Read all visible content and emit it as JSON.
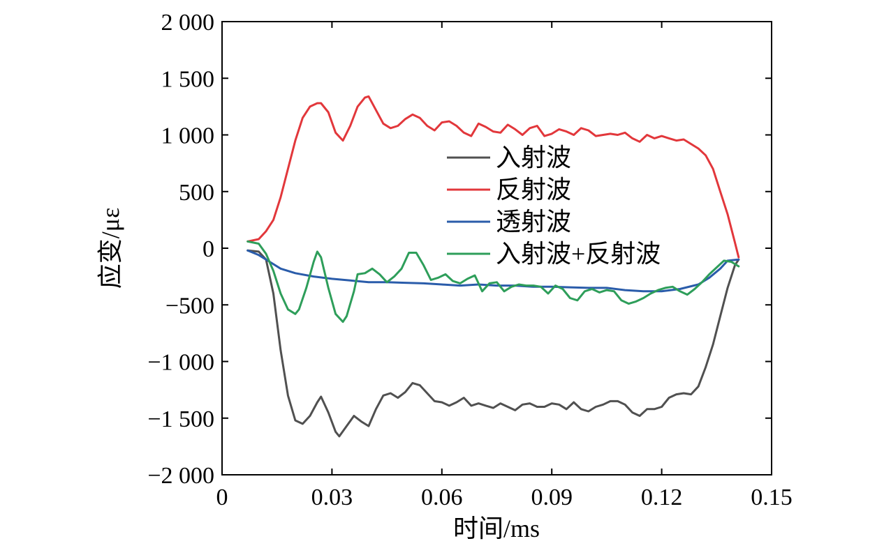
{
  "chart_data": {
    "type": "line",
    "title": "",
    "xlabel": "时间/ms",
    "ylabel": "应变/με",
    "xlim": [
      0,
      0.15
    ],
    "ylim": [
      -2000,
      2000
    ],
    "xticks": [
      0,
      0.03,
      0.06,
      0.09,
      0.12,
      0.15
    ],
    "xtick_labels": [
      "0",
      "0.03",
      "0.06",
      "0.09",
      "0.12",
      "0.15"
    ],
    "yticks": [
      2000,
      1500,
      1000,
      500,
      0,
      -500,
      -1000,
      -1500,
      -2000
    ],
    "ytick_labels": [
      "2 000",
      "1 500",
      "1 000",
      "500",
      "0",
      "−500",
      "−1 000",
      "−1 500",
      "−2 000"
    ],
    "grid": false,
    "legend_position": "center",
    "series": [
      {
        "name": "入射波",
        "color": "#505050",
        "x": [
          0.007,
          0.01,
          0.012,
          0.014,
          0.016,
          0.018,
          0.02,
          0.022,
          0.024,
          0.026,
          0.027,
          0.029,
          0.031,
          0.032,
          0.034,
          0.036,
          0.038,
          0.04,
          0.042,
          0.044,
          0.046,
          0.048,
          0.05,
          0.052,
          0.054,
          0.056,
          0.058,
          0.06,
          0.062,
          0.064,
          0.066,
          0.068,
          0.07,
          0.072,
          0.074,
          0.076,
          0.078,
          0.08,
          0.082,
          0.084,
          0.086,
          0.088,
          0.09,
          0.092,
          0.094,
          0.096,
          0.098,
          0.1,
          0.102,
          0.104,
          0.106,
          0.108,
          0.11,
          0.112,
          0.114,
          0.116,
          0.118,
          0.12,
          0.122,
          0.124,
          0.126,
          0.128,
          0.13,
          0.132,
          0.134,
          0.136,
          0.138,
          0.14,
          0.141
        ],
        "y": [
          -20,
          -30,
          -100,
          -400,
          -900,
          -1300,
          -1520,
          -1550,
          -1480,
          -1360,
          -1310,
          -1450,
          -1620,
          -1660,
          -1570,
          -1480,
          -1530,
          -1570,
          -1420,
          -1300,
          -1280,
          -1320,
          -1270,
          -1190,
          -1210,
          -1280,
          -1350,
          -1360,
          -1390,
          -1360,
          -1320,
          -1390,
          -1370,
          -1390,
          -1410,
          -1370,
          -1400,
          -1430,
          -1380,
          -1370,
          -1400,
          -1400,
          -1370,
          -1380,
          -1420,
          -1360,
          -1420,
          -1440,
          -1400,
          -1380,
          -1350,
          -1350,
          -1380,
          -1450,
          -1480,
          -1420,
          -1420,
          -1400,
          -1320,
          -1290,
          -1280,
          -1290,
          -1220,
          -1050,
          -850,
          -600,
          -350,
          -150,
          -100
        ]
      },
      {
        "name": "反射波",
        "color": "#e2373b",
        "x": [
          0.007,
          0.01,
          0.012,
          0.014,
          0.016,
          0.018,
          0.02,
          0.022,
          0.024,
          0.026,
          0.027,
          0.029,
          0.031,
          0.033,
          0.035,
          0.037,
          0.039,
          0.04,
          0.042,
          0.044,
          0.046,
          0.048,
          0.05,
          0.052,
          0.054,
          0.056,
          0.058,
          0.06,
          0.062,
          0.064,
          0.066,
          0.068,
          0.07,
          0.072,
          0.074,
          0.076,
          0.078,
          0.08,
          0.082,
          0.084,
          0.086,
          0.088,
          0.09,
          0.092,
          0.094,
          0.096,
          0.098,
          0.1,
          0.102,
          0.104,
          0.106,
          0.108,
          0.11,
          0.112,
          0.114,
          0.116,
          0.118,
          0.12,
          0.122,
          0.124,
          0.126,
          0.128,
          0.13,
          0.132,
          0.134,
          0.136,
          0.138,
          0.14,
          0.141
        ],
        "y": [
          60,
          80,
          150,
          250,
          450,
          700,
          950,
          1150,
          1250,
          1280,
          1280,
          1200,
          1020,
          950,
          1080,
          1250,
          1330,
          1340,
          1220,
          1100,
          1060,
          1080,
          1140,
          1180,
          1150,
          1080,
          1040,
          1110,
          1120,
          1080,
          1020,
          990,
          1100,
          1070,
          1030,
          1020,
          1090,
          1050,
          1000,
          1060,
          1080,
          990,
          1010,
          1050,
          1030,
          1000,
          1060,
          1040,
          990,
          1000,
          1010,
          1000,
          1020,
          970,
          940,
          1000,
          970,
          990,
          970,
          950,
          960,
          920,
          880,
          820,
          700,
          500,
          300,
          50,
          -80
        ]
      },
      {
        "name": "透射波",
        "color": "#2a5caa",
        "x": [
          0.007,
          0.01,
          0.013,
          0.016,
          0.02,
          0.025,
          0.03,
          0.035,
          0.04,
          0.045,
          0.05,
          0.055,
          0.06,
          0.065,
          0.07,
          0.075,
          0.08,
          0.085,
          0.09,
          0.095,
          0.1,
          0.105,
          0.11,
          0.115,
          0.12,
          0.125,
          0.13,
          0.133,
          0.136,
          0.138,
          0.141
        ],
        "y": [
          -20,
          -60,
          -120,
          -180,
          -220,
          -250,
          -270,
          -285,
          -300,
          -300,
          -305,
          -310,
          -320,
          -330,
          -320,
          -330,
          -330,
          -340,
          -340,
          -345,
          -350,
          -350,
          -370,
          -380,
          -380,
          -360,
          -320,
          -260,
          -180,
          -110,
          -100
        ]
      },
      {
        "name": "入射波+反射波",
        "color": "#2e9e5a",
        "x": [
          0.007,
          0.01,
          0.012,
          0.014,
          0.016,
          0.018,
          0.02,
          0.021,
          0.023,
          0.025,
          0.026,
          0.027,
          0.029,
          0.031,
          0.033,
          0.034,
          0.036,
          0.037,
          0.039,
          0.041,
          0.043,
          0.045,
          0.047,
          0.049,
          0.051,
          0.053,
          0.055,
          0.057,
          0.059,
          0.061,
          0.063,
          0.065,
          0.067,
          0.069,
          0.071,
          0.073,
          0.075,
          0.077,
          0.079,
          0.081,
          0.083,
          0.085,
          0.087,
          0.089,
          0.091,
          0.093,
          0.095,
          0.097,
          0.099,
          0.101,
          0.103,
          0.105,
          0.107,
          0.109,
          0.111,
          0.113,
          0.115,
          0.117,
          0.119,
          0.121,
          0.123,
          0.125,
          0.127,
          0.129,
          0.131,
          0.133,
          0.135,
          0.137,
          0.139,
          0.141
        ],
        "y": [
          60,
          40,
          -50,
          -200,
          -400,
          -540,
          -580,
          -540,
          -350,
          -120,
          -30,
          -80,
          -350,
          -580,
          -650,
          -600,
          -380,
          -230,
          -220,
          -180,
          -230,
          -300,
          -250,
          -180,
          -40,
          -40,
          -150,
          -280,
          -260,
          -230,
          -290,
          -310,
          -270,
          -240,
          -380,
          -310,
          -300,
          -380,
          -340,
          -320,
          -330,
          -330,
          -340,
          -400,
          -330,
          -360,
          -440,
          -460,
          -380,
          -360,
          -390,
          -370,
          -380,
          -460,
          -490,
          -470,
          -440,
          -400,
          -370,
          -350,
          -340,
          -380,
          -410,
          -360,
          -300,
          -230,
          -170,
          -110,
          -120,
          -160
        ]
      }
    ]
  }
}
